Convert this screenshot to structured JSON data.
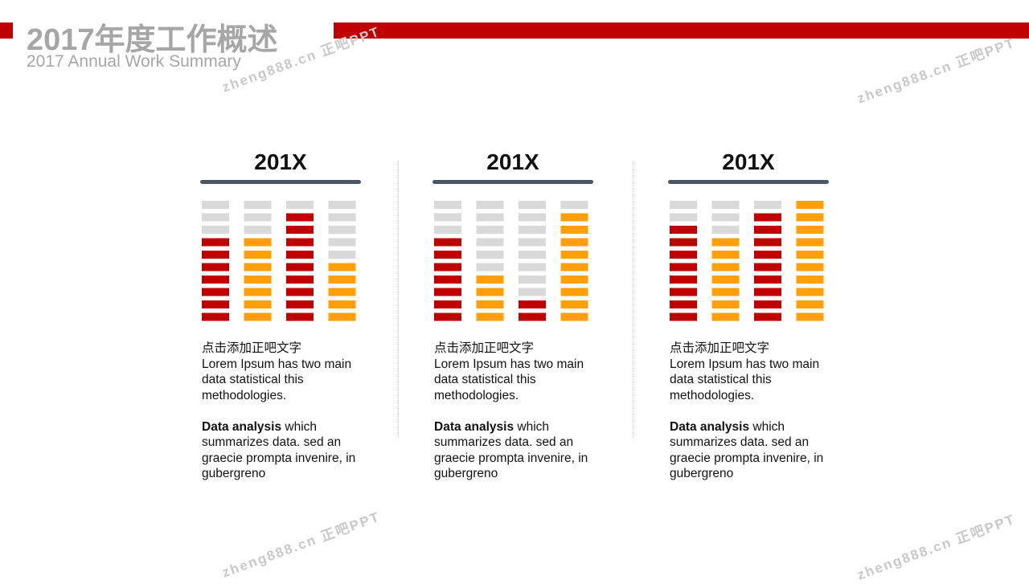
{
  "header": {
    "title": "2017年度工作概述",
    "subtitle": "2017 Annual Work Summary"
  },
  "watermark": {
    "text": "zheng888.cn 正吧PPT"
  },
  "colors": {
    "accent_red": "#C00000",
    "bar_red": "#C00000",
    "bar_orange": "#FFA00A",
    "bar_gray": "#D9D9D9",
    "year_bar": "#4A5565"
  },
  "chart_data": [
    {
      "type": "bar",
      "title": "201X",
      "max_blocks": 10,
      "values": [
        7,
        7,
        9,
        5
      ],
      "series_colors": [
        "red",
        "orange",
        "red",
        "orange"
      ]
    },
    {
      "type": "bar",
      "title": "201X",
      "max_blocks": 10,
      "values": [
        7,
        4,
        2,
        9
      ],
      "series_colors": [
        "red",
        "orange",
        "red",
        "orange"
      ]
    },
    {
      "type": "bar",
      "title": "201X",
      "max_blocks": 10,
      "values": [
        8,
        7,
        9,
        10
      ],
      "series_colors": [
        "red",
        "orange",
        "red",
        "orange"
      ]
    }
  ],
  "panels": [
    {
      "caption": "点击添加正吧文字",
      "line1": "Lorem Ipsum has two main data statistical this methodologies.",
      "analysis_bold": "Data analysis",
      "analysis_rest": " which summarizes data. sed an graecie prompta invenire, in gubergreno"
    },
    {
      "caption": "点击添加正吧文字",
      "line1": "Lorem Ipsum has two main data statistical this methodologies.",
      "analysis_bold": "Data analysis",
      "analysis_rest": " which summarizes data. sed an graecie prompta invenire, in gubergreno"
    },
    {
      "caption": "点击添加正吧文字",
      "line1": "Lorem Ipsum has two main data statistical this methodologies.",
      "analysis_bold": "Data analysis",
      "analysis_rest": " which summarizes data. sed an graecie prompta invenire, in gubergreno"
    }
  ]
}
